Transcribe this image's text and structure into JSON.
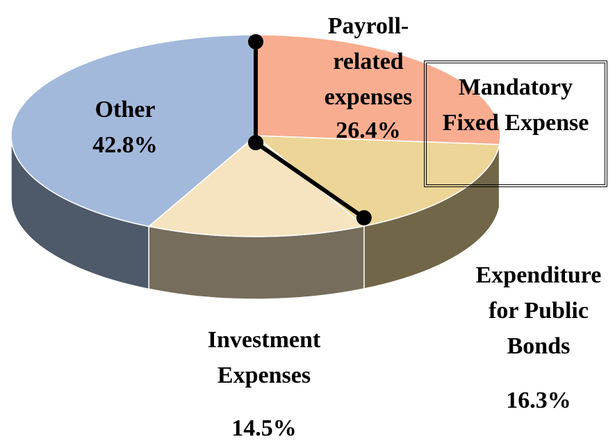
{
  "chart_data": {
    "type": "pie",
    "categories": [
      "Payroll-related expenses",
      "Expenditure for Public Bonds",
      "Investment Expenses",
      "Other"
    ],
    "values": [
      26.4,
      16.3,
      14.5,
      42.8
    ],
    "value_labels": [
      "26.4%",
      "16.3%",
      "14.5%",
      "42.8%"
    ],
    "colors": [
      "#f8ad90",
      "#ecd597",
      "#f5e4bf",
      "#a3b9db"
    ],
    "annotation": "Mandatory Fixed Expense"
  }
}
